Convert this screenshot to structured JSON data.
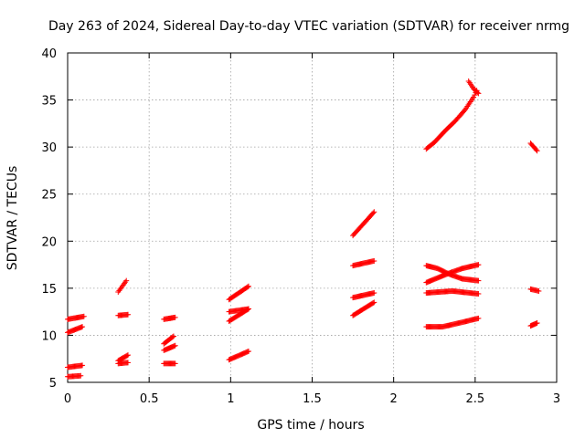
{
  "chart_data": {
    "type": "scatter",
    "title": "Day 263 of 2024, Sidereal Day-to-day VTEC variation (SDTVAR) for receiver nrmg",
    "xlabel": "GPS time / hours",
    "ylabel": "SDTVAR / TECUs",
    "xlim": [
      0,
      3
    ],
    "ylim": [
      5,
      40
    ],
    "x_ticks": [
      0,
      0.5,
      1,
      1.5,
      2,
      2.5,
      3
    ],
    "x_tick_labels": [
      "0",
      "0.5",
      "1",
      "1.5",
      "2",
      "2.5",
      "3"
    ],
    "y_ticks": [
      5,
      10,
      15,
      20,
      25,
      30,
      35,
      40
    ],
    "y_tick_labels": [
      "5",
      "10",
      "15",
      "20",
      "25",
      "30",
      "35",
      "40"
    ],
    "grid": true,
    "marker": "+",
    "color": "#ff0000",
    "series": [
      {
        "name": "s01",
        "points": [
          [
            0.0,
            11.7
          ],
          [
            0.1,
            12.0
          ]
        ]
      },
      {
        "name": "s02",
        "points": [
          [
            0.0,
            10.3
          ],
          [
            0.09,
            10.9
          ]
        ]
      },
      {
        "name": "s03",
        "points": [
          [
            0.0,
            6.6
          ],
          [
            0.09,
            6.8
          ]
        ]
      },
      {
        "name": "s04",
        "points": [
          [
            0.0,
            5.6
          ],
          [
            0.08,
            5.7
          ]
        ]
      },
      {
        "name": "s05",
        "points": [
          [
            0.31,
            14.6
          ],
          [
            0.36,
            15.8
          ]
        ]
      },
      {
        "name": "s06",
        "points": [
          [
            0.31,
            12.1
          ],
          [
            0.37,
            12.2
          ]
        ]
      },
      {
        "name": "s07",
        "points": [
          [
            0.31,
            7.3
          ],
          [
            0.37,
            7.9
          ]
        ]
      },
      {
        "name": "s08",
        "points": [
          [
            0.31,
            7.0
          ],
          [
            0.37,
            7.1
          ]
        ]
      },
      {
        "name": "s09",
        "points": [
          [
            0.59,
            11.7
          ],
          [
            0.66,
            11.9
          ]
        ]
      },
      {
        "name": "s10",
        "points": [
          [
            0.59,
            9.1
          ],
          [
            0.65,
            9.9
          ]
        ]
      },
      {
        "name": "s11",
        "points": [
          [
            0.59,
            8.4
          ],
          [
            0.66,
            8.9
          ]
        ]
      },
      {
        "name": "s12",
        "points": [
          [
            0.59,
            7.0
          ],
          [
            0.66,
            7.0
          ]
        ]
      },
      {
        "name": "s13",
        "points": [
          [
            0.99,
            13.8
          ],
          [
            1.11,
            15.2
          ]
        ]
      },
      {
        "name": "s14",
        "points": [
          [
            0.99,
            12.5
          ],
          [
            1.11,
            12.8
          ]
        ]
      },
      {
        "name": "s15",
        "points": [
          [
            0.99,
            11.5
          ],
          [
            1.11,
            12.8
          ]
        ]
      },
      {
        "name": "s16",
        "points": [
          [
            0.99,
            7.4
          ],
          [
            1.11,
            8.3
          ]
        ]
      },
      {
        "name": "s17",
        "points": [
          [
            1.75,
            20.6
          ],
          [
            1.88,
            23.1
          ]
        ]
      },
      {
        "name": "s18",
        "points": [
          [
            1.75,
            17.4
          ],
          [
            1.88,
            17.9
          ]
        ]
      },
      {
        "name": "s19",
        "points": [
          [
            1.75,
            14.0
          ],
          [
            1.88,
            14.5
          ]
        ]
      },
      {
        "name": "s20",
        "points": [
          [
            1.75,
            12.1
          ],
          [
            1.88,
            13.5
          ]
        ]
      },
      {
        "name": "s21",
        "points": [
          [
            2.2,
            29.8
          ],
          [
            2.25,
            30.5
          ],
          [
            2.32,
            31.8
          ],
          [
            2.38,
            32.8
          ],
          [
            2.44,
            34.0
          ],
          [
            2.49,
            35.3
          ],
          [
            2.51,
            36.0
          ]
        ]
      },
      {
        "name": "s22",
        "points": [
          [
            2.46,
            37.0
          ],
          [
            2.49,
            36.2
          ],
          [
            2.52,
            35.7
          ]
        ]
      },
      {
        "name": "s23",
        "points": [
          [
            2.2,
            17.4
          ],
          [
            2.27,
            17.1
          ],
          [
            2.34,
            16.5
          ],
          [
            2.42,
            16.0
          ],
          [
            2.52,
            15.8
          ]
        ]
      },
      {
        "name": "s24",
        "points": [
          [
            2.2,
            15.6
          ],
          [
            2.27,
            16.1
          ],
          [
            2.34,
            16.6
          ],
          [
            2.42,
            17.1
          ],
          [
            2.52,
            17.5
          ]
        ]
      },
      {
        "name": "s25",
        "points": [
          [
            2.2,
            14.5
          ],
          [
            2.36,
            14.7
          ],
          [
            2.52,
            14.4
          ]
        ]
      },
      {
        "name": "s26",
        "points": [
          [
            2.2,
            10.9
          ],
          [
            2.3,
            10.9
          ],
          [
            2.4,
            11.3
          ],
          [
            2.52,
            11.8
          ]
        ]
      },
      {
        "name": "s27",
        "points": [
          [
            2.84,
            30.4
          ],
          [
            2.88,
            29.6
          ]
        ]
      },
      {
        "name": "s28",
        "points": [
          [
            2.84,
            14.9
          ],
          [
            2.89,
            14.7
          ]
        ]
      },
      {
        "name": "s29",
        "points": [
          [
            2.84,
            11.0
          ],
          [
            2.88,
            11.3
          ]
        ]
      }
    ]
  }
}
